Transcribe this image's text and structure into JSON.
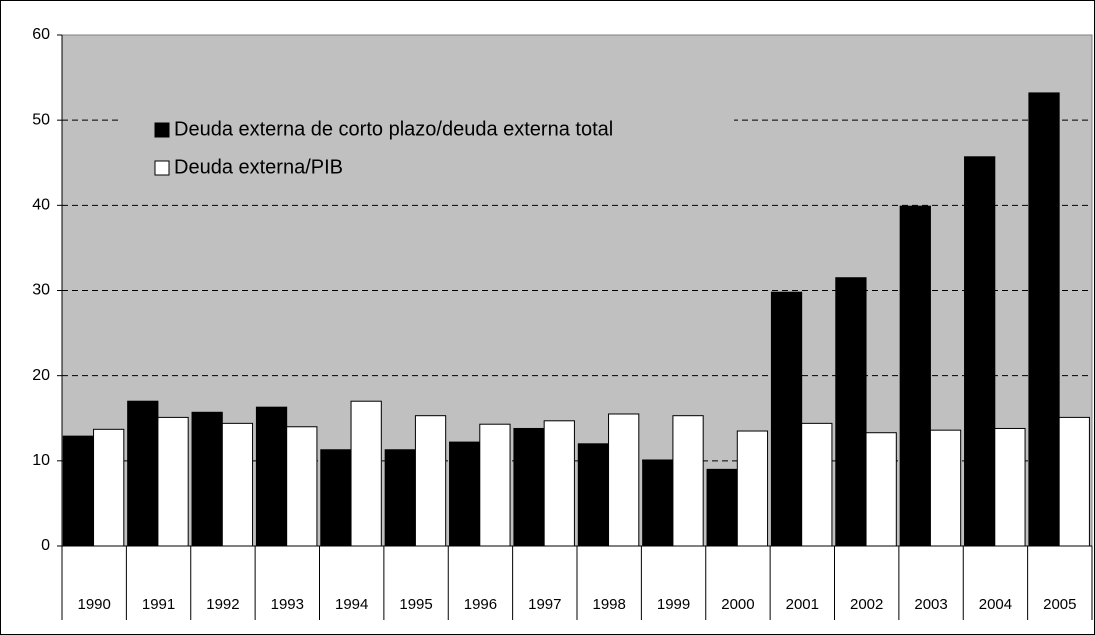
{
  "chart_data": {
    "type": "bar",
    "categories": [
      "1990",
      "1991",
      "1992",
      "1993",
      "1994",
      "1995",
      "1996",
      "1997",
      "1998",
      "1999",
      "2000",
      "2001",
      "2002",
      "2003",
      "2004",
      "2005"
    ],
    "series": [
      {
        "name": "Deuda externa de corto plazo/deuda externa total",
        "color": "#000000",
        "values": [
          12.9,
          17.0,
          15.7,
          16.3,
          11.3,
          11.3,
          12.2,
          13.8,
          12.0,
          10.1,
          9.0,
          29.8,
          31.5,
          39.9,
          45.7,
          53.2
        ]
      },
      {
        "name": "Deuda externa/PIB",
        "color": "#ffffff",
        "values": [
          13.7,
          15.1,
          14.4,
          14.0,
          17.0,
          15.3,
          14.3,
          14.7,
          15.5,
          15.3,
          13.5,
          14.4,
          13.3,
          13.6,
          13.8,
          15.1
        ]
      }
    ],
    "ylim": [
      0,
      60
    ],
    "yticks": [
      0,
      10,
      20,
      30,
      40,
      50,
      60
    ],
    "grid": true,
    "legend": "top-left"
  }
}
